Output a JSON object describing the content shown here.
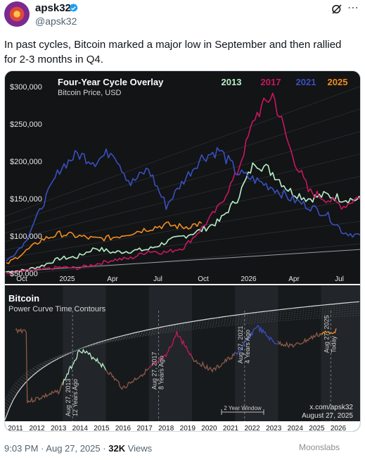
{
  "author": {
    "name": "apsk32",
    "handle": "@apsk32"
  },
  "tweet": {
    "text_line1": "In past cycles, Bitcoin marked a major low in September and then rallied",
    "text_line2": "for 2-3 months in Q4."
  },
  "footer": {
    "time": "9:03 PM",
    "sep1": "·",
    "date": "Aug 27, 2025",
    "sep2": "·",
    "views_count": "32K",
    "views_label": "Views"
  },
  "watermark": "Moonslabs",
  "icons": [
    "verified-icon",
    "grok-icon",
    "more-icon"
  ],
  "chart_data": [
    {
      "type": "line",
      "title": "Four-Year Cycle Overlay",
      "subtitle": "Bitcoin Price, USD",
      "legend": [
        {
          "name": "2013",
          "color": "#b9f0c8"
        },
        {
          "name": "2017",
          "color": "#c8175f"
        },
        {
          "name": "2021",
          "color": "#3a4fbf"
        },
        {
          "name": "2025",
          "color": "#f28c1e"
        }
      ],
      "y_ticks": [
        "$300,000",
        "$250,000",
        "$200,000",
        "$150,000",
        "$100,000",
        "$50,000"
      ],
      "x_ticks": [
        "Oct",
        "2025",
        "Apr",
        "Jul",
        "Oct",
        "2026",
        "Apr",
        "Jul"
      ],
      "ylim": [
        50000,
        300000
      ],
      "series": [
        {
          "name": "2013",
          "values": [
            52000,
            54000,
            60000,
            70000,
            72000,
            84000,
            78000,
            80000,
            82000,
            92000,
            100000,
            108000,
            120000,
            150000,
            200000,
            185000,
            160000,
            150000,
            155000,
            150000,
            148000
          ]
        },
        {
          "name": "2017",
          "values": [
            50000,
            53000,
            55000,
            58000,
            57000,
            62000,
            68000,
            70000,
            80000,
            78000,
            85000,
            110000,
            140000,
            185000,
            260000,
            290000,
            215000,
            160000,
            150000,
            140000,
            155000
          ]
        },
        {
          "name": "2021",
          "values": [
            66000,
            90000,
            140000,
            190000,
            210000,
            200000,
            215000,
            170000,
            190000,
            140000,
            175000,
            205000,
            215000,
            185000,
            175000,
            165000,
            150000,
            140000,
            130000,
            105000,
            100000
          ]
        },
        {
          "name": "2025",
          "values": [
            62000,
            78000,
            95000,
            103000,
            100000,
            96000,
            98000,
            104000,
            110000,
            115000,
            112000,
            117000
          ]
        }
      ]
    },
    {
      "type": "line",
      "title": "Bitcoin",
      "subtitle": "Power Curve Time Contours",
      "x_ticks": [
        "2011",
        "2012",
        "2013",
        "2014",
        "2015",
        "2016",
        "2017",
        "2018",
        "2019",
        "2020",
        "2021",
        "2022",
        "2023",
        "2024",
        "2025",
        "2026"
      ],
      "annotations": [
        {
          "line1": "Aug 27, 2013",
          "line2": "12 Years Ago"
        },
        {
          "line1": "Aug 27, 2017",
          "line2": "8 Years Ago"
        },
        {
          "line1": "Aug 27, 2021",
          "line2": "4 Years Ago"
        },
        {
          "line1": "Aug 27, 2025",
          "line2": "Today"
        }
      ],
      "window_label": "2 Year Window",
      "credit_line1": "x.com/apsk32",
      "credit_line2": "August 27, 2025"
    }
  ]
}
